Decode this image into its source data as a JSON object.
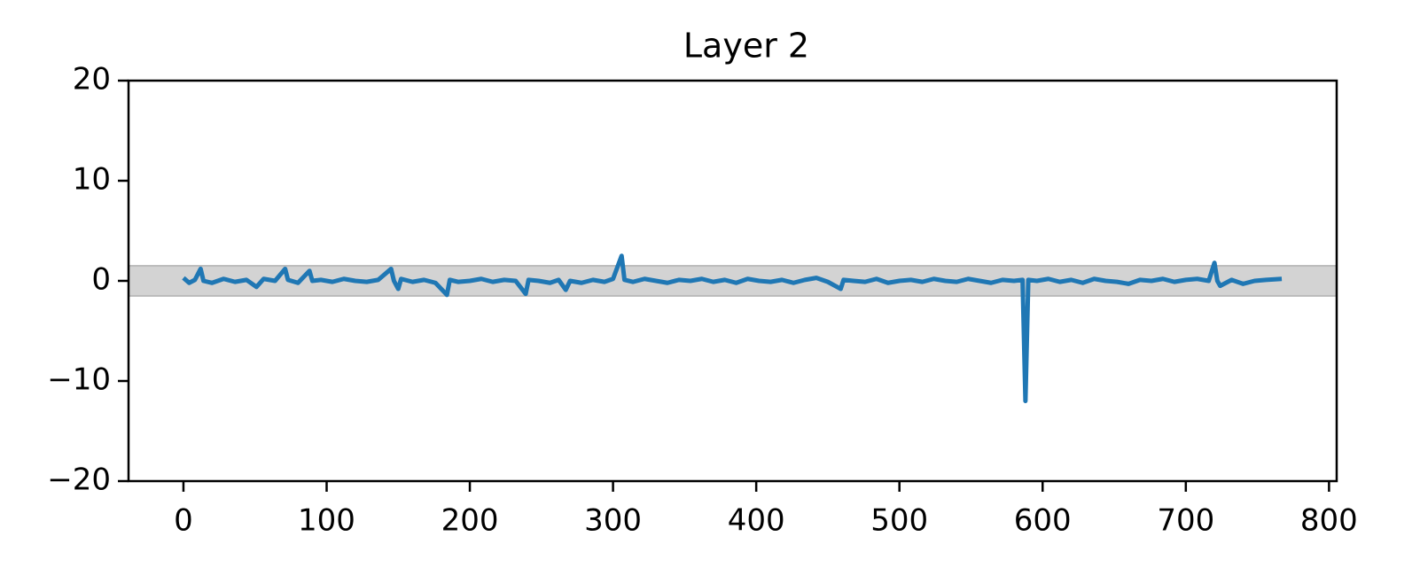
{
  "chart_data": {
    "type": "line",
    "title": "Layer 2",
    "x": [
      0,
      4,
      8,
      12,
      14,
      20,
      28,
      36,
      44,
      51,
      56,
      64,
      71,
      73,
      80,
      88,
      90,
      96,
      104,
      112,
      120,
      128,
      136,
      145,
      147,
      150,
      152,
      160,
      168,
      176,
      184,
      186,
      192,
      200,
      208,
      216,
      224,
      232,
      239,
      241,
      248,
      256,
      262,
      267,
      270,
      278,
      286,
      294,
      300,
      306,
      308,
      314,
      322,
      330,
      338,
      346,
      354,
      362,
      370,
      378,
      386,
      394,
      402,
      410,
      418,
      426,
      434,
      442,
      450,
      459,
      461,
      468,
      476,
      484,
      492,
      500,
      508,
      516,
      524,
      532,
      540,
      548,
      556,
      564,
      572,
      580,
      586,
      588,
      590,
      596,
      604,
      612,
      620,
      628,
      636,
      644,
      652,
      660,
      668,
      676,
      684,
      692,
      700,
      708,
      716,
      720,
      722,
      724,
      732,
      740,
      748,
      756,
      767
    ],
    "series": [
      {
        "color": "#1f77b4",
        "values": [
          0.3,
          -0.2,
          0.1,
          1.2,
          0.0,
          -0.2,
          0.2,
          -0.1,
          0.1,
          -0.6,
          0.2,
          0.0,
          1.2,
          0.1,
          -0.2,
          1.0,
          0.0,
          0.1,
          -0.1,
          0.2,
          0.0,
          -0.1,
          0.1,
          1.2,
          0.0,
          -0.8,
          0.2,
          -0.1,
          0.1,
          -0.2,
          -1.4,
          0.1,
          -0.1,
          0.0,
          0.2,
          -0.1,
          0.1,
          0.0,
          -1.3,
          0.1,
          0.0,
          -0.2,
          0.1,
          -0.9,
          0.0,
          -0.2,
          0.1,
          -0.1,
          0.2,
          2.5,
          0.1,
          -0.1,
          0.2,
          0.0,
          -0.2,
          0.1,
          0.0,
          0.2,
          -0.1,
          0.1,
          -0.2,
          0.2,
          0.0,
          -0.1,
          0.1,
          -0.2,
          0.1,
          0.3,
          -0.1,
          -0.8,
          0.1,
          0.0,
          -0.1,
          0.2,
          -0.2,
          0.0,
          0.1,
          -0.1,
          0.2,
          0.0,
          -0.1,
          0.2,
          0.0,
          -0.2,
          0.1,
          0.0,
          0.1,
          -12.0,
          0.1,
          0.0,
          0.2,
          -0.1,
          0.1,
          -0.2,
          0.2,
          0.0,
          -0.1,
          -0.3,
          0.1,
          0.0,
          0.2,
          -0.1,
          0.1,
          0.2,
          0.0,
          1.8,
          0.0,
          -0.5,
          0.1,
          -0.3,
          0.0,
          0.1,
          0.2
        ]
      }
    ],
    "xlim": [
      -38.35,
      805.35
    ],
    "xticks": [
      0,
      100,
      200,
      300,
      400,
      500,
      600,
      700,
      800
    ],
    "ylim": [
      -20,
      20
    ],
    "yticks": [
      {
        "value": -20,
        "label": "−20"
      },
      {
        "value": -10,
        "label": "−10"
      },
      0,
      10,
      20
    ],
    "band": {
      "range": [
        -1.5,
        1.5
      ],
      "color": "#d3d3d3"
    }
  }
}
